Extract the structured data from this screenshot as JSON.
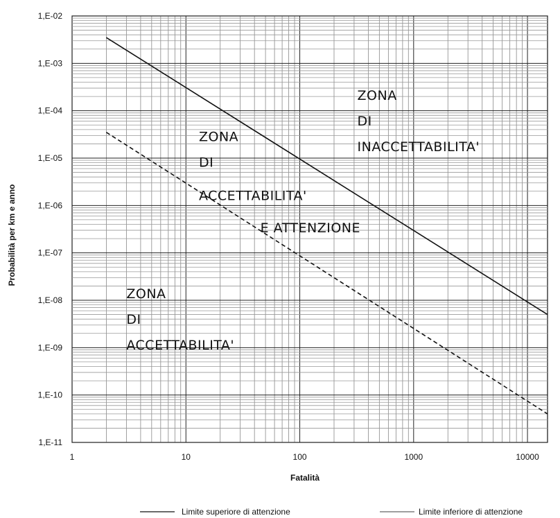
{
  "chart_data": {
    "type": "line",
    "title": "",
    "xlabel": "Fatalità",
    "ylabel": "Probabilità per km e anno",
    "x_scale": "log",
    "y_scale": "log",
    "xlim": [
      1,
      15000
    ],
    "ylim": [
      1e-11,
      0.01
    ],
    "grid": true,
    "x_ticks": [
      {
        "value": 1,
        "label": "1"
      },
      {
        "value": 10,
        "label": "10"
      },
      {
        "value": 100,
        "label": "100"
      },
      {
        "value": 1000,
        "label": "1000"
      },
      {
        "value": 10000,
        "label": "10000"
      }
    ],
    "y_ticks": [
      {
        "value": 0.01,
        "label": "1,E-02"
      },
      {
        "value": 0.001,
        "label": "1,E-03"
      },
      {
        "value": 0.0001,
        "label": "1,E-04"
      },
      {
        "value": 1e-05,
        "label": "1,E-05"
      },
      {
        "value": 1e-06,
        "label": "1,E-06"
      },
      {
        "value": 1e-07,
        "label": "1,E-07"
      },
      {
        "value": 1e-08,
        "label": "1,E-08"
      },
      {
        "value": 1e-09,
        "label": "1,E-09"
      },
      {
        "value": 1e-10,
        "label": "1,E-10"
      },
      {
        "value": 1e-11,
        "label": "1,E-11"
      }
    ],
    "series": [
      {
        "name": "Limite superiore di attenzione",
        "style": "solid",
        "color": "#111111",
        "x": [
          2,
          15000
        ],
        "y": [
          0.0035,
          5e-09
        ]
      },
      {
        "name": "Limite inferiore di attenzione",
        "style": "dashed",
        "color": "#111111",
        "x": [
          2,
          15000
        ],
        "y": [
          3.5e-05,
          4e-11
        ]
      }
    ],
    "annotations": [
      {
        "lines": [
          "ZONA",
          "DI",
          "INACCETTABILITA'"
        ],
        "x": 320,
        "y": 0.00017
      },
      {
        "lines": [
          "ZONA",
          "DI"
        ],
        "x": 13,
        "y": 2.3e-05
      },
      {
        "lines": [
          "ACCETTABILITA'"
        ],
        "x": 13,
        "y": 1.3e-06
      },
      {
        "lines": [
          "E ATTENZIONE"
        ],
        "x": 45,
        "y": 2.7e-07
      },
      {
        "lines": [
          "ZONA",
          "DI",
          "ACCETTABILITA'"
        ],
        "x": 3,
        "y": 1.1e-08
      }
    ],
    "legend_position": "bottom"
  }
}
